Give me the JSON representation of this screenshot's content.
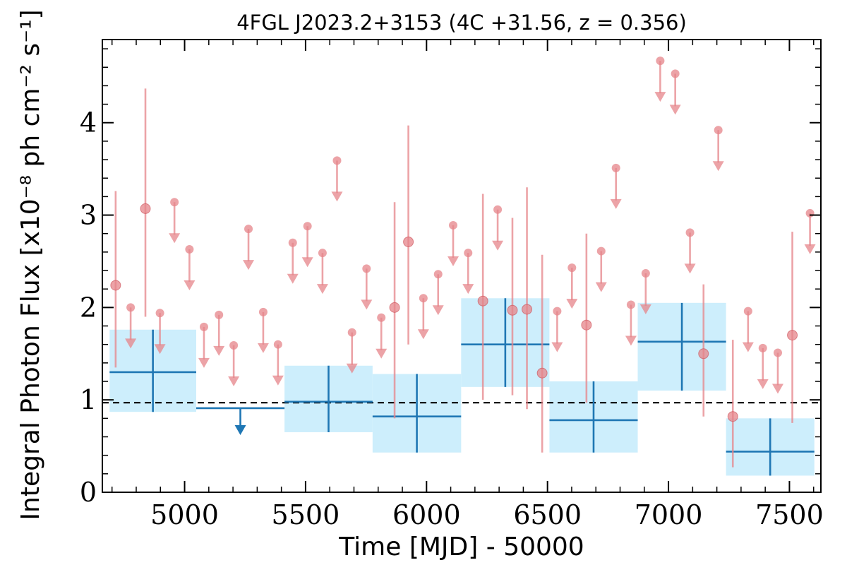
{
  "chart_data": {
    "type": "scatter",
    "title": "4FGL J2023.2+3153 (4C +31.56, z = 0.356)",
    "xlabel": "Time [MJD] - 50000",
    "ylabel": "Integral Photon Flux [x10⁻⁸ ph cm⁻² s⁻¹]",
    "xlim": [
      4660,
      7630
    ],
    "ylim": [
      0,
      4.9
    ],
    "x_ticks": [
      5000,
      5500,
      6000,
      6500,
      7000,
      7500
    ],
    "x_tick_labels": [
      "5000",
      "5500",
      "6000",
      "6500",
      "7000",
      "7500"
    ],
    "y_ticks": [
      0,
      1,
      2,
      3,
      4
    ],
    "y_tick_labels": [
      "0",
      "1",
      "2",
      "3",
      "4"
    ],
    "reference_line": {
      "y": 0.97,
      "style": "dashed"
    },
    "colors": {
      "fine": "#e6848a",
      "coarse": "#1f77b4",
      "coarse_band": "#cdeefc",
      "reference": "#000000"
    },
    "series": [
      {
        "binning": "fine",
        "detections": [
          {
            "x": 4715,
            "y": 2.24,
            "lo": 1.35,
            "hi": 3.26
          },
          {
            "x": 4838,
            "y": 3.07,
            "lo": 1.9,
            "hi": 4.37
          },
          {
            "x": 5868,
            "y": 2.0,
            "lo": 0.8,
            "hi": 3.14
          },
          {
            "x": 5925,
            "y": 2.71,
            "lo": 1.6,
            "hi": 3.97
          },
          {
            "x": 6233,
            "y": 2.07,
            "lo": 1.0,
            "hi": 3.23
          },
          {
            "x": 6355,
            "y": 1.97,
            "lo": 1.05,
            "hi": 2.97
          },
          {
            "x": 6415,
            "y": 1.98,
            "lo": 0.9,
            "hi": 3.3
          },
          {
            "x": 6478,
            "y": 1.29,
            "lo": 0.43,
            "hi": 2.57
          },
          {
            "x": 6661,
            "y": 1.81,
            "lo": 0.97,
            "hi": 2.8
          },
          {
            "x": 7145,
            "y": 1.5,
            "lo": 0.82,
            "hi": 2.25
          },
          {
            "x": 7266,
            "y": 0.82,
            "lo": 0.27,
            "hi": 1.65
          },
          {
            "x": 7512,
            "y": 1.7,
            "lo": 0.75,
            "hi": 2.82
          }
        ],
        "upper_limits": [
          {
            "x": 4777,
            "y": 2.0
          },
          {
            "x": 4898,
            "y": 1.94
          },
          {
            "x": 4958,
            "y": 3.14
          },
          {
            "x": 5020,
            "y": 2.63
          },
          {
            "x": 5080,
            "y": 1.79
          },
          {
            "x": 5142,
            "y": 1.92
          },
          {
            "x": 5203,
            "y": 1.59
          },
          {
            "x": 5264,
            "y": 2.85
          },
          {
            "x": 5325,
            "y": 1.95
          },
          {
            "x": 5386,
            "y": 1.6
          },
          {
            "x": 5447,
            "y": 2.7
          },
          {
            "x": 5508,
            "y": 2.88
          },
          {
            "x": 5570,
            "y": 2.59
          },
          {
            "x": 5630,
            "y": 3.59
          },
          {
            "x": 5692,
            "y": 1.73
          },
          {
            "x": 5752,
            "y": 2.42
          },
          {
            "x": 5813,
            "y": 1.89
          },
          {
            "x": 5987,
            "y": 2.1
          },
          {
            "x": 6048,
            "y": 2.36
          },
          {
            "x": 6110,
            "y": 2.89
          },
          {
            "x": 6172,
            "y": 2.59
          },
          {
            "x": 6294,
            "y": 3.06
          },
          {
            "x": 6540,
            "y": 1.96
          },
          {
            "x": 6601,
            "y": 2.43
          },
          {
            "x": 6722,
            "y": 2.61
          },
          {
            "x": 6783,
            "y": 3.51
          },
          {
            "x": 6845,
            "y": 2.03
          },
          {
            "x": 6906,
            "y": 2.37
          },
          {
            "x": 6966,
            "y": 4.67
          },
          {
            "x": 7028,
            "y": 4.53
          },
          {
            "x": 7089,
            "y": 2.81
          },
          {
            "x": 7206,
            "y": 3.92
          },
          {
            "x": 7329,
            "y": 1.96
          },
          {
            "x": 7390,
            "y": 1.56
          },
          {
            "x": 7452,
            "y": 1.51
          },
          {
            "x": 7585,
            "y": 3.02
          }
        ]
      },
      {
        "binning": "coarse",
        "detections": [
          {
            "x0": 4690,
            "x1": 5048,
            "y": 1.3,
            "lo": 0.87,
            "hi": 1.76
          },
          {
            "x0": 5413,
            "x1": 5777,
            "y": 0.98,
            "lo": 0.65,
            "hi": 1.37
          },
          {
            "x0": 5777,
            "x1": 6143,
            "y": 0.82,
            "lo": 0.43,
            "hi": 1.28
          },
          {
            "x0": 6143,
            "x1": 6508,
            "y": 1.6,
            "lo": 1.14,
            "hi": 2.1
          },
          {
            "x0": 6508,
            "x1": 6873,
            "y": 0.78,
            "lo": 0.43,
            "hi": 1.2
          },
          {
            "x0": 6873,
            "x1": 7238,
            "y": 1.63,
            "lo": 1.1,
            "hi": 2.05
          },
          {
            "x0": 7238,
            "x1": 7603,
            "y": 0.44,
            "lo": 0.18,
            "hi": 0.8
          }
        ],
        "upper_limits": [
          {
            "x0": 5048,
            "x1": 5413,
            "y": 0.91
          }
        ]
      }
    ]
  }
}
